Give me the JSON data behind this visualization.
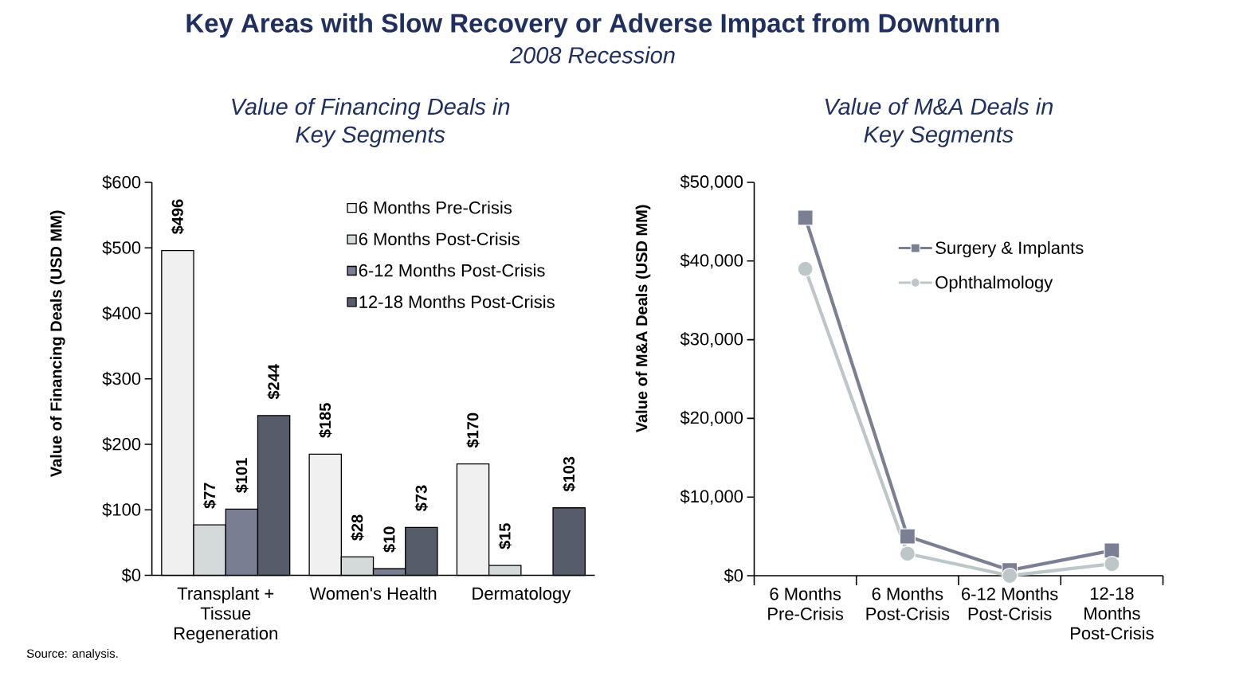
{
  "chart_data": [
    {
      "type": "bar",
      "title": "Value of Financing Deals in Key Segments",
      "ylabel": "Value of Financing Deals (USD MM)",
      "categories": [
        "Transplant + Tissue Regeneration",
        "Women's Health",
        "Dermatology"
      ],
      "series": [
        {
          "name": "6 Months Pre-Crisis",
          "color": "#f0f0f0",
          "values": [
            496,
            185,
            170
          ],
          "value_labels": [
            "$496",
            "$185",
            "$170"
          ]
        },
        {
          "name": "6 Months Post-Crisis",
          "color": "#d4d9da",
          "values": [
            77,
            28,
            15
          ],
          "value_labels": [
            "$77",
            "$28",
            "$15"
          ]
        },
        {
          "name": "6-12 Months Post-Crisis",
          "color": "#7a7e93",
          "values": [
            101,
            10,
            null
          ],
          "value_labels": [
            "$101",
            "$10",
            null
          ]
        },
        {
          "name": "12-18 Months Post-Crisis",
          "color": "#575c6b",
          "values": [
            244,
            73,
            103
          ],
          "value_labels": [
            "$244",
            "$73",
            "$103"
          ]
        }
      ],
      "ylim": [
        0,
        600
      ],
      "yticks": [
        {
          "value": 0,
          "label": "$0"
        },
        {
          "value": 100,
          "label": "$100"
        },
        {
          "value": 200,
          "label": "$200"
        },
        {
          "value": 300,
          "label": "$300"
        },
        {
          "value": 400,
          "label": "$400"
        },
        {
          "value": 500,
          "label": "$500"
        },
        {
          "value": 600,
          "label": "$600"
        }
      ],
      "legend": "top right",
      "annotations": [
        "Key Areas with Slow Recovery or Adverse Impact from Downturn",
        "2008 Recession",
        "Source: analysis."
      ]
    },
    {
      "type": "line",
      "title": "Value of M&A Deals in Key Segments",
      "ylabel": "Value of M&A Deals (USD MM)",
      "categories": [
        "6 Months Pre-Crisis",
        "6 Months Post-Crisis",
        "6-12 Months Post-Crisis",
        "12-18 Months Post-Crisis"
      ],
      "series": [
        {
          "name": "Surgery & Implants",
          "color": "#7b7f93",
          "marker": "square",
          "values": [
            45500,
            5000,
            700,
            3200
          ]
        },
        {
          "name": "Ophthalmology",
          "color": "#bdc6c8",
          "marker": "circle",
          "values": [
            39000,
            2800,
            0,
            1500
          ]
        }
      ],
      "ylim": [
        0,
        50000
      ],
      "yticks": [
        {
          "value": 0,
          "label": "$0"
        },
        {
          "value": 10000,
          "label": "$10,000"
        },
        {
          "value": 20000,
          "label": "$20,000"
        },
        {
          "value": 30000,
          "label": "$30,000"
        },
        {
          "value": 40000,
          "label": "$40,000"
        },
        {
          "value": 50000,
          "label": "$50,000"
        }
      ],
      "legend": "top right"
    }
  ]
}
